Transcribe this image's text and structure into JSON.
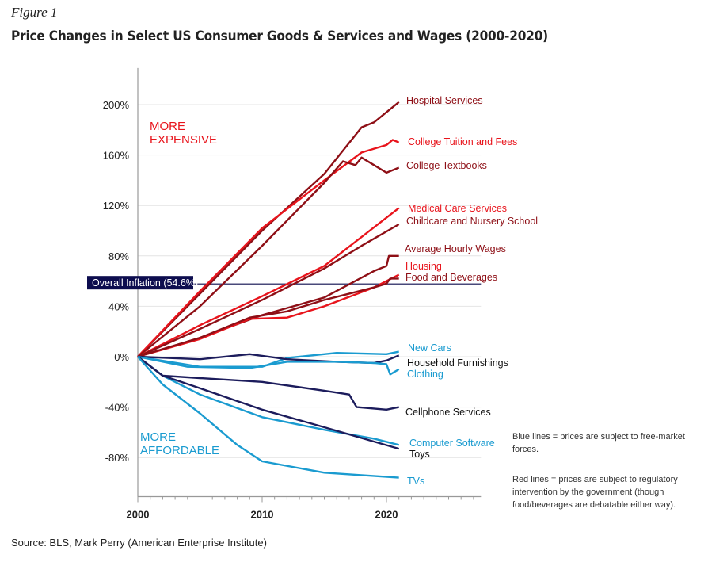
{
  "figure_label": "Figure 1",
  "title": "Price Changes in Select US Consumer Goods & Services and Wages (2000-2020)",
  "source": "Source: BLS, Mark Perry (American Enterprise Institute)",
  "notes": [
    "Blue lines = prices are subject to free-market forces.",
    "Red lines = prices are subject to regulatory intervention by the government (though food/beverages are debatable either way)."
  ],
  "colors": {
    "red": "#e8141c",
    "dark_red": "#8e0f16",
    "blue": "#1a9bd0",
    "navy": "#1c1c5c",
    "inflation_box": "#0d0d4f"
  },
  "chart_data": {
    "type": "line",
    "title": "Price Changes in Select US Consumer Goods & Services and Wages (2000-2020)",
    "xlabel": "",
    "ylabel": "",
    "xlim": [
      2000,
      2027.6
    ],
    "ylim": [
      -111,
      229
    ],
    "x_ticks": [
      "2000",
      "2010",
      "2020"
    ],
    "y_ticks": [
      "200%",
      "160%",
      "120%",
      "80%",
      "40%",
      "0%",
      "-40%",
      "-80%"
    ],
    "y_tick_values": [
      200,
      160,
      120,
      80,
      40,
      0,
      -40,
      -80
    ],
    "grid": "horizontal",
    "annotations": {
      "more_expensive": [
        "MORE",
        "EXPENSIVE"
      ],
      "more_affordable": [
        "MORE",
        "AFFORDABLE"
      ]
    },
    "reference_line": {
      "label": "Overall Inflation (54.6%)",
      "value": 54.6
    },
    "series": [
      {
        "name": "Hospital Services",
        "color": "dark_red",
        "points": [
          [
            2000,
            0
          ],
          [
            2005,
            50
          ],
          [
            2010,
            100
          ],
          [
            2015,
            145
          ],
          [
            2018,
            182
          ],
          [
            2019,
            186
          ],
          [
            2021,
            202
          ]
        ]
      },
      {
        "name": "College Tuition and Fees",
        "color": "red",
        "points": [
          [
            2000,
            0
          ],
          [
            2005,
            52
          ],
          [
            2010,
            102
          ],
          [
            2015,
            140
          ],
          [
            2018,
            162
          ],
          [
            2020,
            168
          ],
          [
            2020.5,
            172
          ],
          [
            2021,
            170
          ]
        ]
      },
      {
        "name": "College Textbooks",
        "color": "dark_red",
        "points": [
          [
            2000,
            0
          ],
          [
            2005,
            40
          ],
          [
            2010,
            88
          ],
          [
            2015,
            138
          ],
          [
            2016.5,
            155
          ],
          [
            2017.5,
            152
          ],
          [
            2018,
            158
          ],
          [
            2019,
            152
          ],
          [
            2020,
            146
          ],
          [
            2021,
            150
          ]
        ]
      },
      {
        "name": "Medical Care Services",
        "color": "red",
        "points": [
          [
            2000,
            0
          ],
          [
            2005,
            25
          ],
          [
            2010,
            48
          ],
          [
            2015,
            72
          ],
          [
            2018,
            95
          ],
          [
            2021,
            118
          ]
        ]
      },
      {
        "name": "Childcare and Nursery School",
        "color": "dark_red",
        "points": [
          [
            2000,
            0
          ],
          [
            2005,
            22
          ],
          [
            2010,
            45
          ],
          [
            2015,
            70
          ],
          [
            2018,
            88
          ],
          [
            2021,
            105
          ]
        ]
      },
      {
        "name": "Average Hourly Wages",
        "color": "dark_red",
        "points": [
          [
            2000,
            0
          ],
          [
            2005,
            15
          ],
          [
            2010,
            33
          ],
          [
            2015,
            47
          ],
          [
            2019,
            68
          ],
          [
            2020,
            72
          ],
          [
            2020.2,
            80
          ],
          [
            2021,
            80
          ]
        ]
      },
      {
        "name": "Housing",
        "color": "red",
        "points": [
          [
            2000,
            0
          ],
          [
            2005,
            14
          ],
          [
            2009,
            30
          ],
          [
            2012,
            31
          ],
          [
            2015,
            40
          ],
          [
            2019,
            55
          ],
          [
            2021,
            65
          ]
        ]
      },
      {
        "name": "Food and Beverages",
        "color": "dark_red",
        "points": [
          [
            2000,
            0
          ],
          [
            2005,
            15
          ],
          [
            2009,
            31
          ],
          [
            2012,
            36
          ],
          [
            2015,
            45
          ],
          [
            2019,
            55
          ],
          [
            2020,
            58
          ],
          [
            2020.3,
            62
          ],
          [
            2021,
            62
          ]
        ]
      },
      {
        "name": "New Cars",
        "color": "blue",
        "points": [
          [
            2000,
            0
          ],
          [
            2005,
            -8
          ],
          [
            2010,
            -8
          ],
          [
            2012,
            -1
          ],
          [
            2016,
            3
          ],
          [
            2020,
            2
          ],
          [
            2021,
            4
          ]
        ]
      },
      {
        "name": "Household Furnishings",
        "color": "navy",
        "points": [
          [
            2000,
            0
          ],
          [
            2005,
            -2
          ],
          [
            2009,
            2
          ],
          [
            2012,
            -2
          ],
          [
            2016,
            -4
          ],
          [
            2019,
            -5
          ],
          [
            2020,
            -3
          ],
          [
            2021,
            1
          ]
        ]
      },
      {
        "name": "Clothing",
        "color": "blue",
        "points": [
          [
            2000,
            0
          ],
          [
            2004,
            -8
          ],
          [
            2009,
            -9
          ],
          [
            2012,
            -4
          ],
          [
            2016,
            -4
          ],
          [
            2019,
            -5
          ],
          [
            2020,
            -6
          ],
          [
            2020.3,
            -14
          ],
          [
            2021,
            -10
          ]
        ]
      },
      {
        "name": "Cellphone Services",
        "color": "navy",
        "points": [
          [
            2000,
            0
          ],
          [
            2002,
            -15
          ],
          [
            2005,
            -17
          ],
          [
            2010,
            -20
          ],
          [
            2015,
            -27
          ],
          [
            2017,
            -30
          ],
          [
            2017.6,
            -40
          ],
          [
            2020,
            -42
          ],
          [
            2021,
            -40
          ]
        ]
      },
      {
        "name": "Computer Software",
        "color": "blue",
        "points": [
          [
            2000,
            0
          ],
          [
            2002,
            -15
          ],
          [
            2005,
            -30
          ],
          [
            2010,
            -48
          ],
          [
            2015,
            -58
          ],
          [
            2019,
            -65
          ],
          [
            2021,
            -70
          ]
        ]
      },
      {
        "name": "Toys",
        "color": "navy",
        "points": [
          [
            2000,
            0
          ],
          [
            2002,
            -15
          ],
          [
            2005,
            -25
          ],
          [
            2010,
            -42
          ],
          [
            2015,
            -56
          ],
          [
            2021,
            -73
          ]
        ]
      },
      {
        "name": "TVs",
        "color": "blue",
        "points": [
          [
            2000,
            0
          ],
          [
            2002,
            -22
          ],
          [
            2005,
            -45
          ],
          [
            2008,
            -70
          ],
          [
            2010,
            -83
          ],
          [
            2015,
            -92
          ],
          [
            2021,
            -96
          ]
        ]
      }
    ]
  }
}
